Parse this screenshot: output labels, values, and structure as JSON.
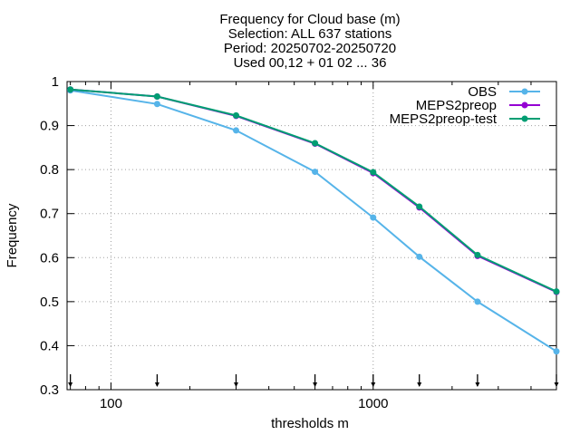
{
  "chart_data": {
    "type": "line",
    "title_lines": [
      "Frequency  for Cloud base (m)",
      "Selection: ALL    637 stations",
      "Period: 20250702-20250720",
      "Used 00,12 + 01 02 ... 36"
    ],
    "xlabel": "thresholds m",
    "ylabel": "Frequency",
    "xscale": "log",
    "xlim": [
      68,
      5000
    ],
    "ylim": [
      0.3,
      1.0
    ],
    "x_ticks": [
      100,
      1000
    ],
    "x_tick_labels": [
      "100",
      "1000"
    ],
    "y_ticks": [
      0.3,
      0.4,
      0.5,
      0.6,
      0.7,
      0.8,
      0.9,
      1.0
    ],
    "y_tick_labels": [
      "0.3",
      "0.4",
      "0.5",
      "0.6",
      "0.7",
      "0.8",
      "0.9",
      "1"
    ],
    "grid": true,
    "legend_position": "top-right",
    "threshold_markers": [
      70,
      150,
      300,
      600,
      1000,
      1500,
      2500,
      5000
    ],
    "x": [
      70,
      150,
      300,
      600,
      1000,
      1500,
      2500,
      5000
    ],
    "series": [
      {
        "name": "OBS",
        "color": "#56b4e9",
        "marker": "circle",
        "values": [
          0.98,
          0.949,
          0.889,
          0.795,
          0.691,
          0.602,
          0.5,
          0.387
        ]
      },
      {
        "name": "MEPS2preop",
        "color": "#9400d3",
        "marker": "circle",
        "values": [
          0.982,
          0.966,
          0.922,
          0.859,
          0.792,
          0.714,
          0.604,
          0.522
        ]
      },
      {
        "name": "MEPS2preop-test",
        "color": "#009e73",
        "marker": "circle",
        "values": [
          0.982,
          0.966,
          0.923,
          0.86,
          0.794,
          0.716,
          0.606,
          0.523
        ]
      }
    ]
  }
}
